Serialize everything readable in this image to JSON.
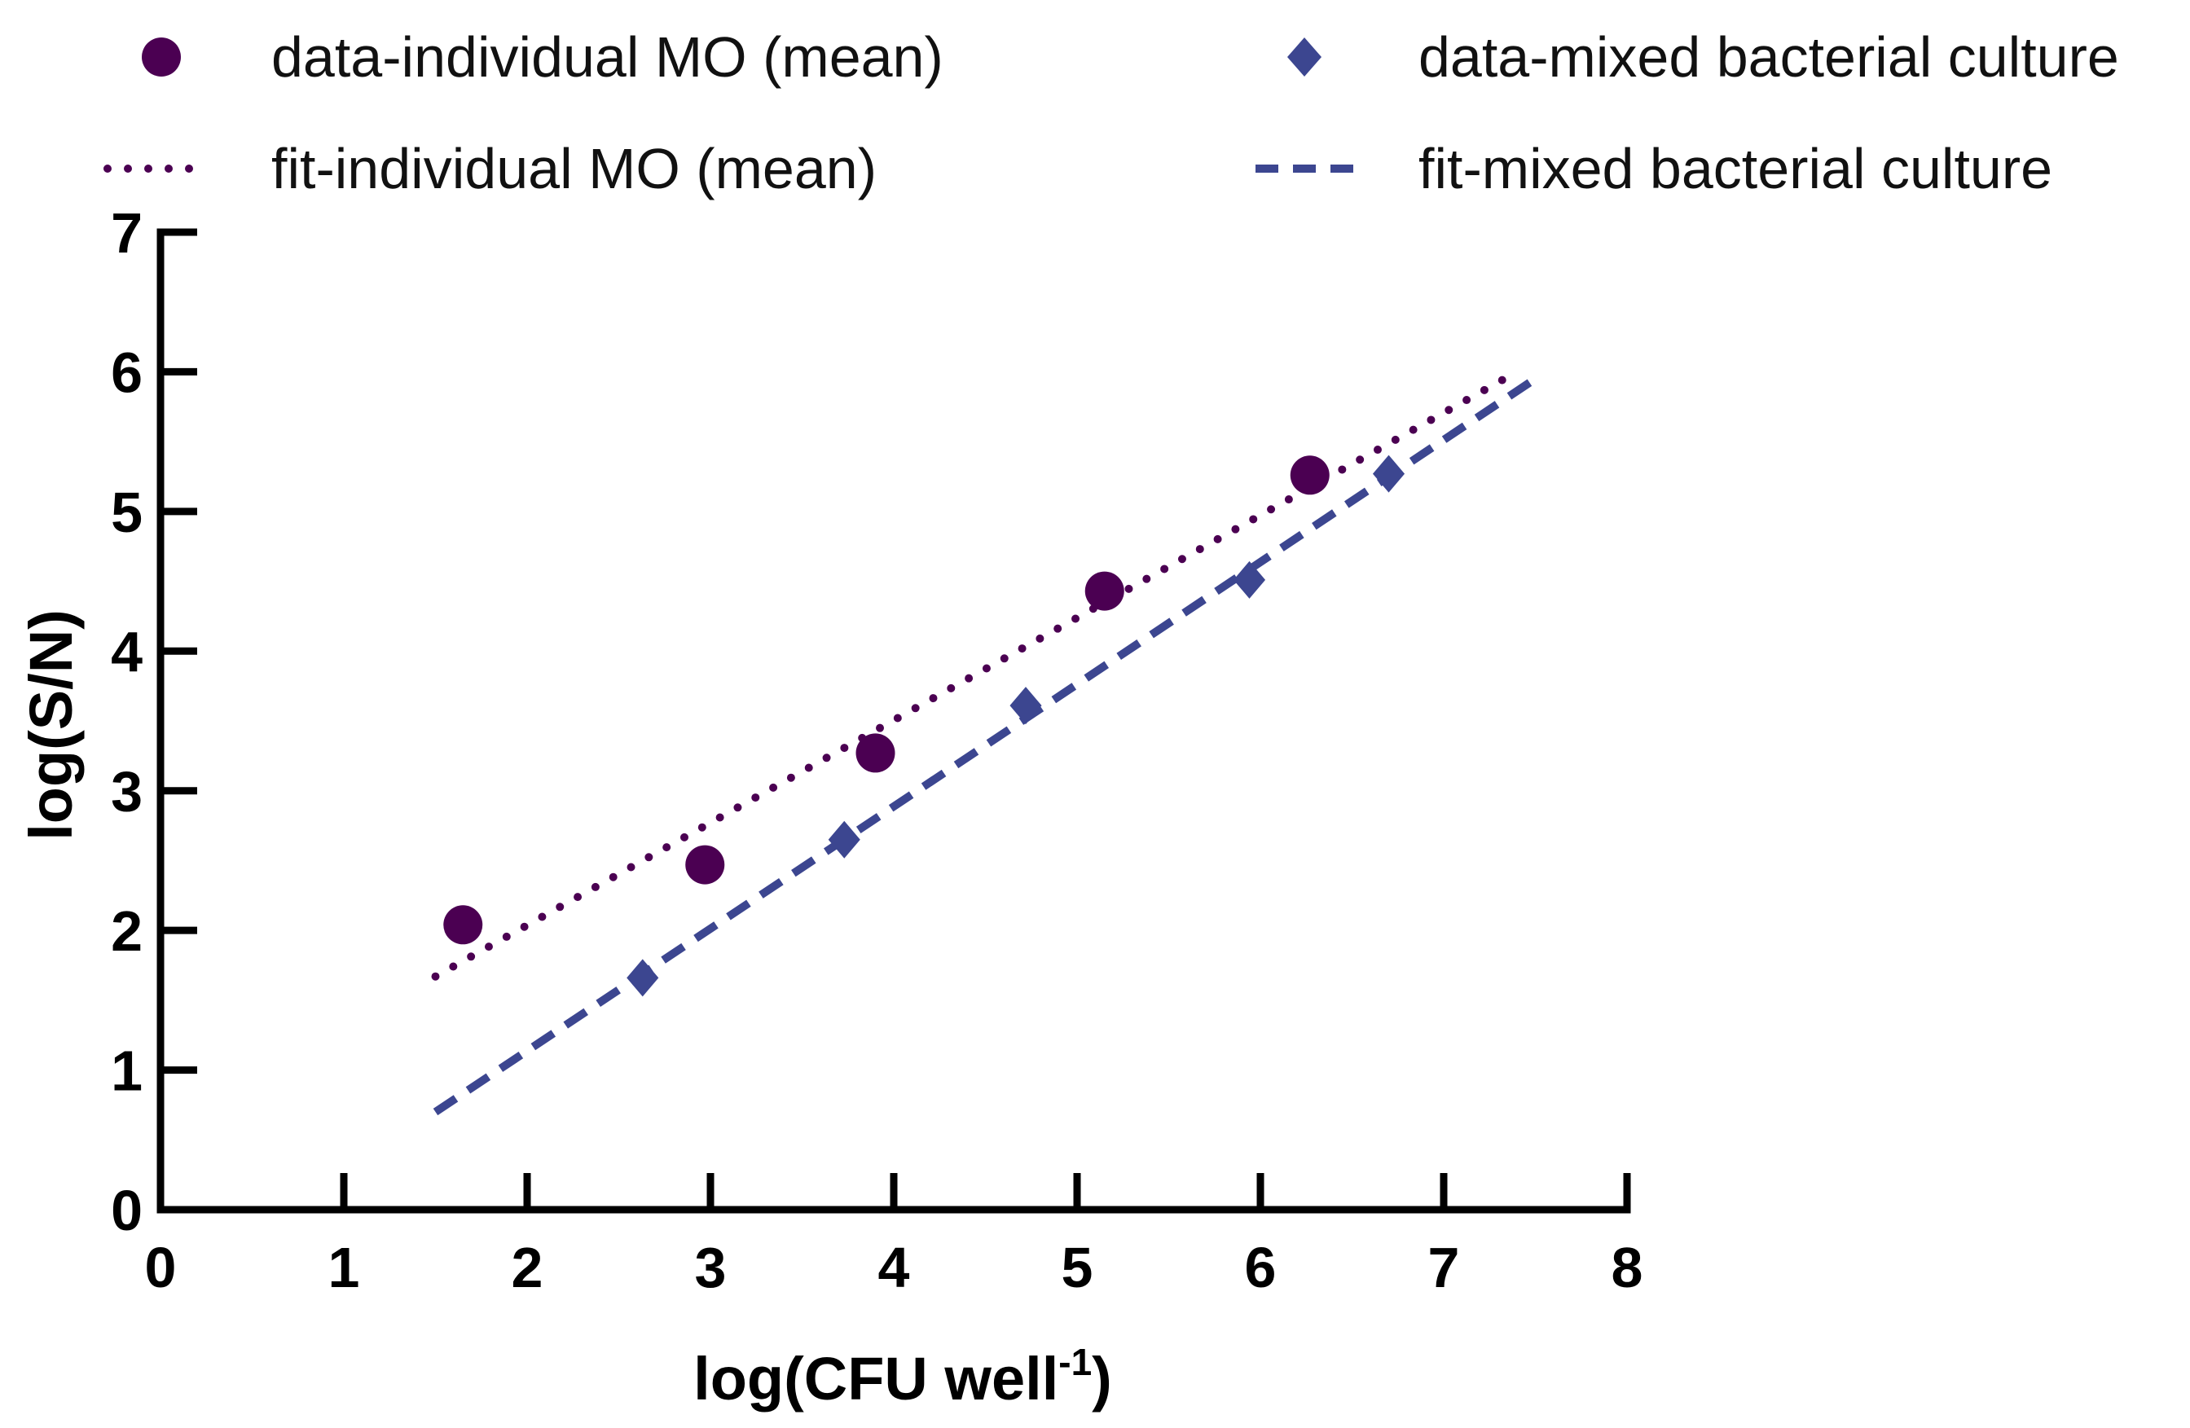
{
  "chart_data": {
    "type": "scatter",
    "title": "",
    "xlabel": "log(CFU well",
    "xlabel_superscript": "-1",
    "xlabel_suffix": ")",
    "ylabel": "log(S/N)",
    "xlim": [
      0,
      8
    ],
    "ylim": [
      0,
      7
    ],
    "xticks": [
      "0",
      "1",
      "2",
      "3",
      "4",
      "5",
      "6",
      "7",
      "8"
    ],
    "yticks": [
      "0",
      "1",
      "2",
      "3",
      "4",
      "5",
      "6",
      "7"
    ],
    "grid": false,
    "legend_position": "top",
    "series": [
      {
        "name": "data-individual MO (mean)",
        "kind": "points",
        "marker": "circle",
        "color": "#4B0052",
        "x": [
          1.65,
          2.97,
          3.9,
          5.15,
          6.27
        ],
        "y": [
          2.04,
          2.47,
          3.27,
          4.43,
          5.26
        ]
      },
      {
        "name": "data-mixed bacterial culture",
        "kind": "points",
        "marker": "diamond",
        "color": "#3C4690",
        "x": [
          2.63,
          3.73,
          4.72,
          5.94,
          6.7
        ],
        "y": [
          1.66,
          2.65,
          3.61,
          4.51,
          5.27
        ]
      },
      {
        "name": "fit-individual MO (mean)",
        "kind": "line",
        "style": "dotted",
        "color": "#4B0052",
        "x": [
          1.5,
          7.4
        ],
        "y": [
          1.67,
          6.0
        ]
      },
      {
        "name": "fit-mixed bacterial culture",
        "kind": "line",
        "style": "dashed",
        "color": "#3C4690",
        "x": [
          1.5,
          7.5
        ],
        "y": [
          0.7,
          5.95
        ]
      }
    ]
  }
}
